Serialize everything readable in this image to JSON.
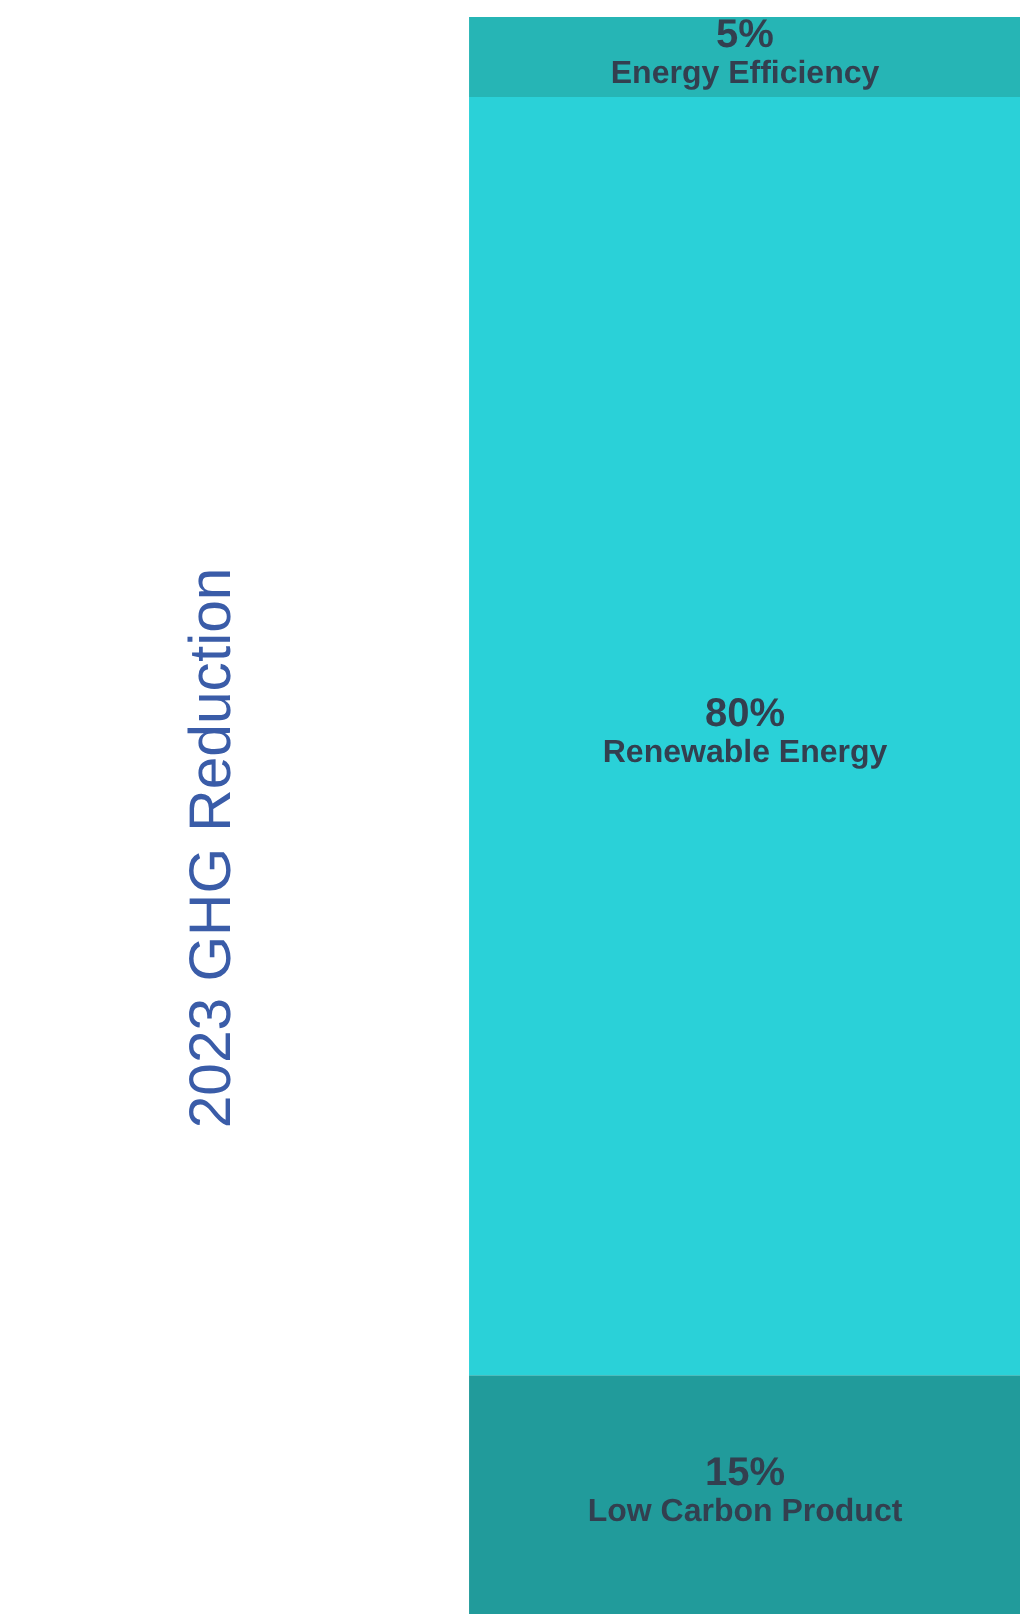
{
  "chart_data": {
    "type": "bar",
    "title": "2023 GHG Reduction",
    "stacked": true,
    "categories": [
      null
    ],
    "series": [
      {
        "name": "Low Carbon Product",
        "color": "#219b9b",
        "values": [
          15
        ],
        "value_labels": [
          "15%"
        ]
      },
      {
        "name": "Renewable Energy",
        "color": "#2ad1d8",
        "values": [
          80
        ],
        "value_labels": [
          "80%"
        ]
      },
      {
        "name": "Energy Efficiency",
        "color": "#26b5b5",
        "values": [
          5
        ],
        "value_labels": [
          "5%"
        ]
      }
    ]
  }
}
